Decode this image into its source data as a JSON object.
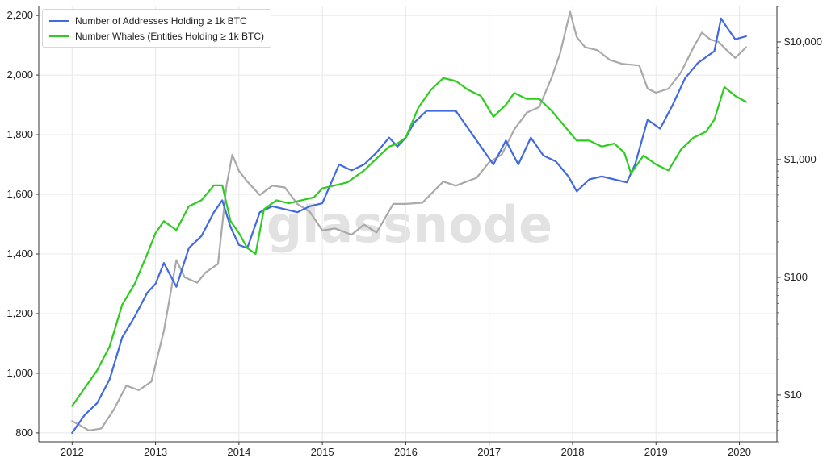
{
  "watermark": "glassnode",
  "legend": [
    {
      "label": "Number of Addresses Holding ≥ 1k BTC",
      "color": "#4169e1"
    },
    {
      "label": "Number Whales (Entities Holding ≥ 1k BTC)",
      "color": "#2ecc1f"
    }
  ],
  "chart_data": {
    "type": "line",
    "x_ticks": [
      "2012",
      "2013",
      "2014",
      "2015",
      "2016",
      "2017",
      "2018",
      "2019",
      "2020"
    ],
    "y_left": {
      "ticks": [
        "800",
        "1,000",
        "1,200",
        "1,400",
        "1,600",
        "1,800",
        "2,000",
        "2,200"
      ],
      "range": [
        770,
        2230
      ]
    },
    "y_right": {
      "scale": "log",
      "ticks": [
        "$10",
        "$100",
        "$1,000",
        "$10,000"
      ],
      "range": [
        4,
        20000
      ]
    },
    "x_range": [
      2011.6,
      2020.45
    ],
    "grid": true,
    "legend_position": "top-left",
    "series": [
      {
        "name": "Number of Addresses Holding ≥ 1k BTC",
        "axis": "left",
        "color": "#4169e1",
        "points": [
          [
            2012.0,
            800
          ],
          [
            2012.15,
            860
          ],
          [
            2012.3,
            900
          ],
          [
            2012.45,
            980
          ],
          [
            2012.6,
            1120
          ],
          [
            2012.75,
            1190
          ],
          [
            2012.9,
            1270
          ],
          [
            2013.0,
            1300
          ],
          [
            2013.1,
            1370
          ],
          [
            2013.25,
            1290
          ],
          [
            2013.4,
            1420
          ],
          [
            2013.55,
            1460
          ],
          [
            2013.7,
            1540
          ],
          [
            2013.8,
            1580
          ],
          [
            2013.9,
            1490
          ],
          [
            2014.0,
            1430
          ],
          [
            2014.1,
            1420
          ],
          [
            2014.25,
            1540
          ],
          [
            2014.4,
            1560
          ],
          [
            2014.55,
            1550
          ],
          [
            2014.7,
            1540
          ],
          [
            2014.85,
            1560
          ],
          [
            2015.0,
            1570
          ],
          [
            2015.2,
            1700
          ],
          [
            2015.35,
            1680
          ],
          [
            2015.5,
            1700
          ],
          [
            2015.65,
            1740
          ],
          [
            2015.8,
            1790
          ],
          [
            2015.9,
            1760
          ],
          [
            2016.0,
            1790
          ],
          [
            2016.1,
            1840
          ],
          [
            2016.25,
            1880
          ],
          [
            2016.4,
            1880
          ],
          [
            2016.6,
            1880
          ],
          [
            2016.75,
            1820
          ],
          [
            2016.9,
            1760
          ],
          [
            2017.05,
            1700
          ],
          [
            2017.2,
            1780
          ],
          [
            2017.35,
            1700
          ],
          [
            2017.5,
            1790
          ],
          [
            2017.65,
            1730
          ],
          [
            2017.8,
            1710
          ],
          [
            2017.95,
            1660
          ],
          [
            2018.05,
            1610
          ],
          [
            2018.2,
            1650
          ],
          [
            2018.35,
            1660
          ],
          [
            2018.5,
            1650
          ],
          [
            2018.65,
            1640
          ],
          [
            2018.75,
            1700
          ],
          [
            2018.9,
            1850
          ],
          [
            2019.05,
            1820
          ],
          [
            2019.2,
            1900
          ],
          [
            2019.35,
            1990
          ],
          [
            2019.5,
            2040
          ],
          [
            2019.6,
            2060
          ],
          [
            2019.7,
            2080
          ],
          [
            2019.78,
            2190
          ],
          [
            2019.85,
            2160
          ],
          [
            2019.95,
            2120
          ],
          [
            2020.08,
            2130
          ]
        ]
      },
      {
        "name": "Number Whales (Entities Holding ≥ 1k BTC)",
        "axis": "left",
        "color": "#2ecc1f",
        "points": [
          [
            2012.0,
            890
          ],
          [
            2012.15,
            950
          ],
          [
            2012.3,
            1010
          ],
          [
            2012.45,
            1090
          ],
          [
            2012.6,
            1230
          ],
          [
            2012.75,
            1300
          ],
          [
            2012.9,
            1400
          ],
          [
            2013.0,
            1470
          ],
          [
            2013.1,
            1510
          ],
          [
            2013.25,
            1480
          ],
          [
            2013.4,
            1560
          ],
          [
            2013.55,
            1580
          ],
          [
            2013.7,
            1630
          ],
          [
            2013.8,
            1630
          ],
          [
            2013.9,
            1510
          ],
          [
            2014.0,
            1470
          ],
          [
            2014.1,
            1420
          ],
          [
            2014.2,
            1400
          ],
          [
            2014.3,
            1550
          ],
          [
            2014.45,
            1580
          ],
          [
            2014.6,
            1570
          ],
          [
            2014.75,
            1580
          ],
          [
            2014.9,
            1590
          ],
          [
            2015.0,
            1620
          ],
          [
            2015.15,
            1630
          ],
          [
            2015.3,
            1640
          ],
          [
            2015.5,
            1680
          ],
          [
            2015.65,
            1720
          ],
          [
            2015.8,
            1760
          ],
          [
            2015.9,
            1770
          ],
          [
            2016.0,
            1790
          ],
          [
            2016.15,
            1890
          ],
          [
            2016.3,
            1950
          ],
          [
            2016.45,
            1990
          ],
          [
            2016.6,
            1980
          ],
          [
            2016.75,
            1950
          ],
          [
            2016.9,
            1930
          ],
          [
            2017.05,
            1860
          ],
          [
            2017.2,
            1900
          ],
          [
            2017.3,
            1940
          ],
          [
            2017.45,
            1920
          ],
          [
            2017.6,
            1920
          ],
          [
            2017.75,
            1880
          ],
          [
            2017.9,
            1830
          ],
          [
            2018.05,
            1780
          ],
          [
            2018.2,
            1780
          ],
          [
            2018.35,
            1760
          ],
          [
            2018.5,
            1770
          ],
          [
            2018.62,
            1740
          ],
          [
            2018.7,
            1670
          ],
          [
            2018.85,
            1730
          ],
          [
            2019.0,
            1700
          ],
          [
            2019.15,
            1680
          ],
          [
            2019.3,
            1750
          ],
          [
            2019.45,
            1790
          ],
          [
            2019.6,
            1810
          ],
          [
            2019.7,
            1850
          ],
          [
            2019.82,
            1960
          ],
          [
            2019.95,
            1930
          ],
          [
            2020.08,
            1910
          ]
        ]
      },
      {
        "name": "",
        "axis": "right",
        "color": "#a9a9a9",
        "points": [
          [
            2012.0,
            6
          ],
          [
            2012.1,
            5.5
          ],
          [
            2012.2,
            5
          ],
          [
            2012.35,
            5.2
          ],
          [
            2012.5,
            7.5
          ],
          [
            2012.65,
            12
          ],
          [
            2012.8,
            11
          ],
          [
            2012.95,
            13
          ],
          [
            2013.1,
            35
          ],
          [
            2013.25,
            140
          ],
          [
            2013.35,
            100
          ],
          [
            2013.5,
            90
          ],
          [
            2013.6,
            110
          ],
          [
            2013.75,
            130
          ],
          [
            2013.85,
            600
          ],
          [
            2013.92,
            1100
          ],
          [
            2014.0,
            800
          ],
          [
            2014.1,
            650
          ],
          [
            2014.25,
            500
          ],
          [
            2014.4,
            600
          ],
          [
            2014.55,
            580
          ],
          [
            2014.7,
            420
          ],
          [
            2014.85,
            360
          ],
          [
            2015.0,
            250
          ],
          [
            2015.15,
            260
          ],
          [
            2015.35,
            230
          ],
          [
            2015.5,
            280
          ],
          [
            2015.65,
            240
          ],
          [
            2015.85,
            420
          ],
          [
            2016.0,
            420
          ],
          [
            2016.2,
            430
          ],
          [
            2016.45,
            650
          ],
          [
            2016.6,
            600
          ],
          [
            2016.85,
            700
          ],
          [
            2017.0,
            950
          ],
          [
            2017.15,
            1100
          ],
          [
            2017.3,
            1800
          ],
          [
            2017.45,
            2500
          ],
          [
            2017.6,
            2800
          ],
          [
            2017.75,
            5000
          ],
          [
            2017.85,
            8000
          ],
          [
            2017.97,
            18000
          ],
          [
            2018.05,
            11000
          ],
          [
            2018.15,
            9000
          ],
          [
            2018.3,
            8500
          ],
          [
            2018.45,
            7000
          ],
          [
            2018.6,
            6500
          ],
          [
            2018.8,
            6300
          ],
          [
            2018.9,
            4000
          ],
          [
            2019.0,
            3700
          ],
          [
            2019.15,
            4000
          ],
          [
            2019.3,
            5500
          ],
          [
            2019.45,
            9000
          ],
          [
            2019.55,
            12000
          ],
          [
            2019.65,
            10500
          ],
          [
            2019.75,
            10000
          ],
          [
            2019.85,
            8500
          ],
          [
            2019.95,
            7300
          ],
          [
            2020.08,
            9000
          ]
        ]
      }
    ]
  }
}
